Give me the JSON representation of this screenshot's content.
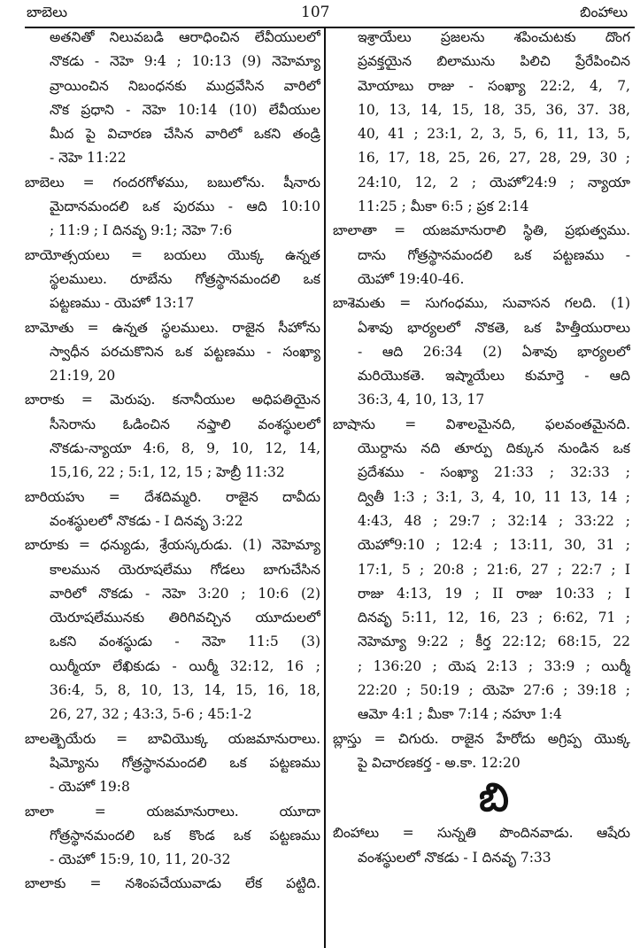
{
  "header": {
    "left": "బాబెలు",
    "page_number": "107",
    "right": "బింహాలు"
  },
  "left_column": [
    {
      "continued": true,
      "lines": [
        "అతనితో నిలువబడి ఆరాధించిన లేవీయులలో",
        "నొకడు - నెహె 9:4 ; 10:13 (9) నెహెమ్యా",
        "వ్రాయించిన నిబంధనకు ముద్రవేసిన వారిలో",
        "నొక ప్రధాని - నెహె 10:14 (10) లేవీయుల",
        "మీద పై విచారణ చేసిన వారిలో ఒకని తండ్రి",
        "- నెహె 11:22"
      ]
    },
    {
      "lines": [
        "బాబెలు = గందరగోళము, బబులోను. షీనారు",
        "మైదానమందలి ఒక పురము - ఆది 10:10",
        "; 11:9 ; I దినవృ 9:1; నెహె 7:6"
      ]
    },
    {
      "lines": [
        "బాయోత్సయలు = బయలు యొక్క ఉన్నత",
        "స్థలములు. రూబేను గోత్రస్థానమందలి ఒక",
        "పట్టణము - యెహో 13:17"
      ]
    },
    {
      "lines": [
        "బామోతు = ఉన్నత స్థలములు. రాజైన సీహోను",
        "స్వాధీన పరచుకొనిన ఒక పట్టణము - సంఖ్యా",
        "21:19, 20"
      ]
    },
    {
      "lines": [
        "బారాకు = మెరుపు. కనానీయుల అధిపతియైన",
        "సీసెరాను ఓడించిన నఫ్తాలి వంశస్థులలో",
        "నొకడు-న్యాయా 4:6, 8, 9, 10, 12, 14,",
        "15,16, 22 ; 5:1, 12, 15 ; హెబ్రీ 11:32"
      ]
    },
    {
      "lines": [
        "బారియహు = దేశదిమ్మరి. రాజైన దావీదు",
        "వంశస్థులలో నొకడు - I దినవృ 3:22"
      ]
    },
    {
      "lines": [
        "బారూకు = ధన్యుడు, శ్రేయస్కరుడు. (1) నెహెమ్యా",
        "కాలమున యెరూషలేము గోడలు బాగుచేసిన",
        "వారిలో నొకడు - నెహె 3:20 ; 10:6 (2)",
        "యెరూషలేమునకు తిరిగివచ్చిన యూదులలో",
        "ఒకని వంశస్థుడు - నెహె 11:5 (3)",
        "యిర్మీయా లేఖికుడు - యిర్మీ 32:12, 16 ;",
        "36:4, 5, 8, 10, 13, 14, 15, 16, 18,",
        "26, 27, 32 ; 43:3, 5-6 ; 45:1-2"
      ]
    },
    {
      "lines": [
        "బాలత్బెయేరు = బావియొక్క యజమానురాలు.",
        "షిమ్యోను గోత్రస్థానమందలి ఒక పట్టణము",
        "- యెహో 19:8"
      ]
    },
    {
      "lines": [
        "బాలా = యజమానురాలు. యూదా",
        "గోత్రస్థానమందలి ఒక కొండ ఒక పట్టణము",
        "- యెహో 15:9, 10, 11, 20-32"
      ]
    },
    {
      "lines": [
        "బాలాకు = నశింపచేయువాడు లేక పట్టిది."
      ],
      "continues": true
    }
  ],
  "right_column": [
    {
      "continued": true,
      "lines": [
        "ఇశ్రాయేలు ప్రజలను శపించుటకు దొంగ",
        "ప్రవక్తయైన బిలామును పిలిచి ప్రేరేపించిన",
        "మోయాబు రాజు - సంఖ్యా 22:2, 4, 7,",
        "10, 13, 14, 15, 18, 35, 36, 37. 38,",
        "40, 41 ; 23:1, 2, 3, 5, 6, 11, 13, 5,",
        "16, 17, 18, 25, 26, 27, 28, 29, 30 ;",
        "24:10, 12, 2 ; యెహో24:9 ; న్యాయా",
        "11:25 ; మీకా 6:5 ; ప్రక 2:14"
      ]
    },
    {
      "lines": [
        "బాలాతా = యజమానురాలి స్థితి, ప్రభుత్వము.",
        "దాను గోత్రస్థానమందలి ఒక పట్టణము -",
        "యెహో 19:40-46."
      ]
    },
    {
      "lines": [
        "బాశెమతు = సుగంధము, సువాసన గలది. (1)",
        "ఏశావు భార్యలలో నొకతె, ఒక హిత్తీయురాలు",
        "- ఆది 26:34 (2) ఏశావు భార్యలలో",
        "మరియొకతె. ఇష్మాయేలు కుమార్తె - ఆది",
        "36:3, 4, 10, 13, 17"
      ]
    },
    {
      "lines": [
        "బాషాను = విశాలమైనది, ఫలవంతమైనది.",
        "యొర్దాను నది తూర్పు దిక్కున నుండిన ఒక",
        "ప్రదేశము - సంఖ్యా 21:33 ; 32:33 ;",
        "ద్వితీ 1:3 ; 3:1, 3, 4, 10, 11 13, 14 ;",
        "4:43, 48 ; 29:7 ; 32:14 ; 33:22 ;",
        "యెహో9:10 ; 12:4 ; 13:11, 30, 31 ;",
        "17:1, 5 ; 20:8 ; 21:6, 27 ; 22:7 ; I",
        "రాజు 4:13, 19 ; II రాజు 10:33 ; I",
        "దినవృ 5:11, 12, 16, 23 ; 6:62, 71 ;",
        "నెహెమ్యా 9:22 ; కీర్త 22:12; 68:15, 22",
        "; 136:20 ; యెష 2:13 ; 33:9 ; యిర్మీ",
        "22:20 ; 50:19 ; యెహె 27:6 ; 39:18 ;",
        "ఆమో 4:1 ; మీకా 7:14 ; నహూ 1:4"
      ]
    },
    {
      "lines": [
        "బ్లాస్తు = చిగురు. రాజైన హేరోదు అగ్రిప్ప యొక్క",
        "పై విచారణకర్త - అ.కా. 12:20"
      ]
    },
    {
      "section_letter": "బి"
    },
    {
      "lines": [
        "బింహాలు = సున్నతి పొందినవాడు. ఆషేరు",
        "వంశస్థులలో నొకడు - I దినవృ 7:33"
      ]
    }
  ]
}
